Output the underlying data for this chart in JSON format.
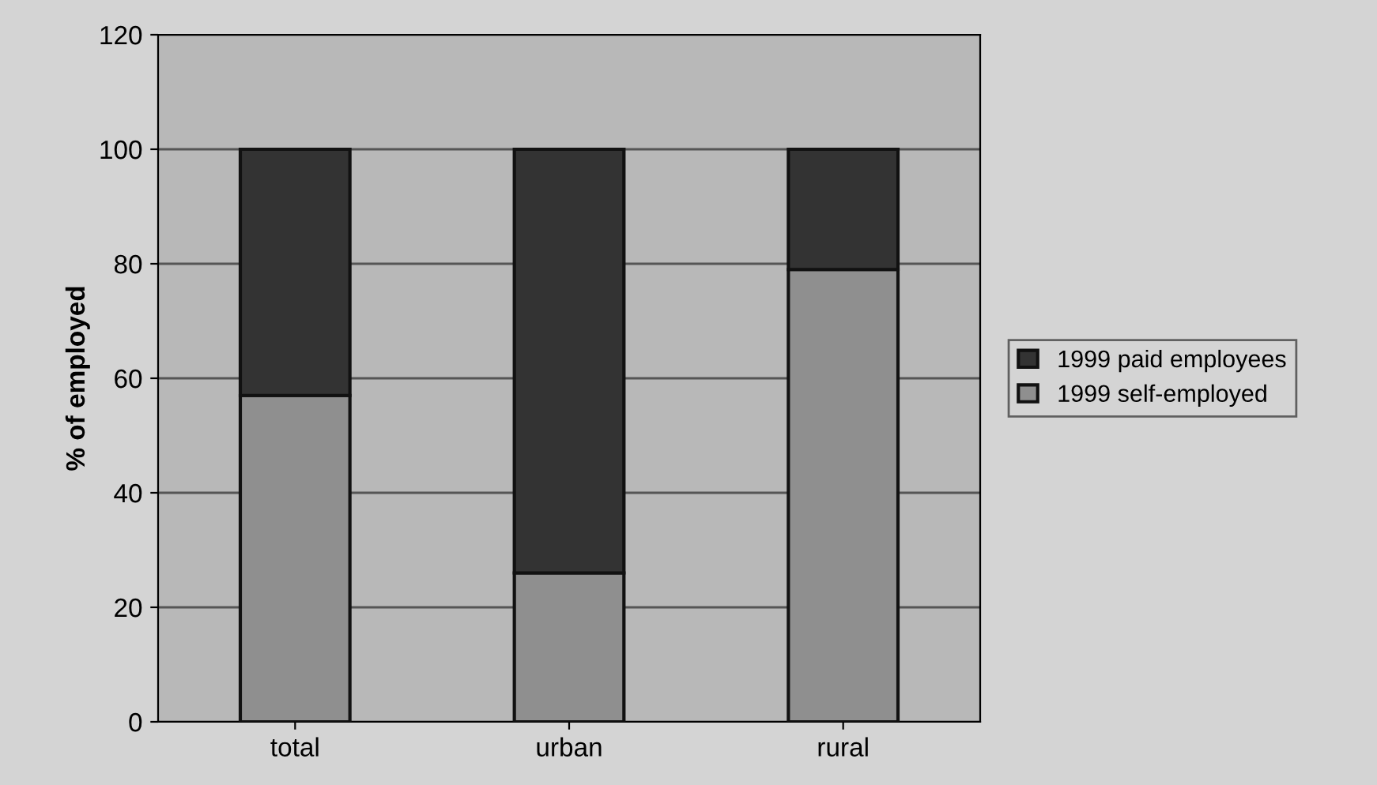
{
  "chart_data": {
    "type": "bar",
    "stacked": true,
    "ylabel": "% of employed",
    "categories": [
      "total",
      "urban",
      "rural"
    ],
    "series": [
      {
        "name": "1999 self-employed",
        "color": "#8f8f8f",
        "values": [
          57,
          26,
          79
        ]
      },
      {
        "name": "1999 paid employees",
        "color": "#333333",
        "values": [
          43,
          74,
          21
        ]
      }
    ],
    "ylim": [
      0,
      120
    ],
    "yticks": [
      0,
      20,
      40,
      60,
      80,
      100,
      120
    ],
    "grid": "y",
    "legend": "right"
  }
}
